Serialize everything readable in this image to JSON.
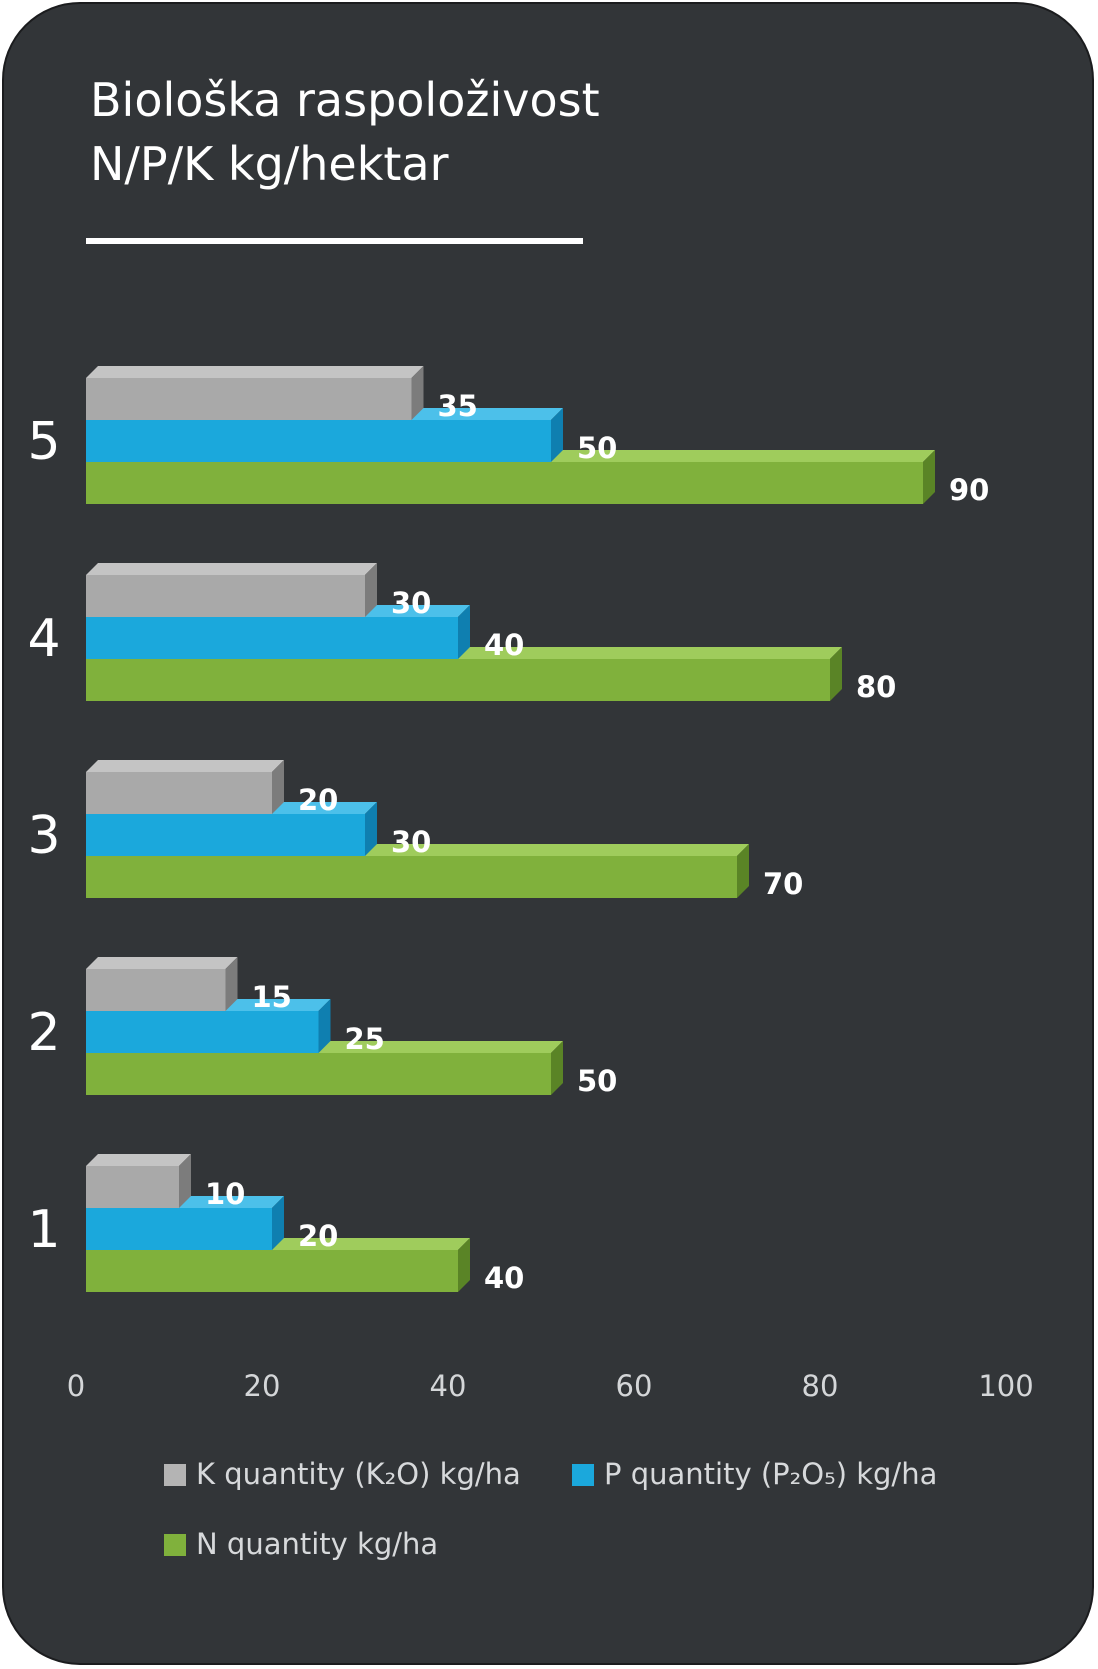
{
  "chart_data": {
    "type": "bar",
    "orientation": "horizontal",
    "title_lines": [
      "Biološka raspoloživost",
      "N/P/K kg/hektar"
    ],
    "categories": [
      "1",
      "2",
      "3",
      "4",
      "5"
    ],
    "series": [
      {
        "name": "K quantity (K₂O) kg/ha",
        "color": "#a9a9a9",
        "values": [
          10,
          15,
          20,
          30,
          35
        ]
      },
      {
        "name": "P quantity (P₂O₅) kg/ha",
        "color": "#1ba8dc",
        "values": [
          20,
          25,
          30,
          40,
          50
        ]
      },
      {
        "name": "N quantity kg/ha",
        "color": "#80b13c",
        "values": [
          40,
          50,
          70,
          80,
          90
        ]
      }
    ],
    "xlim": [
      0,
      100
    ],
    "xticks": [
      "0",
      "20",
      "40",
      "60",
      "80",
      "100"
    ],
    "grid": false,
    "legend_position": "bottom"
  }
}
